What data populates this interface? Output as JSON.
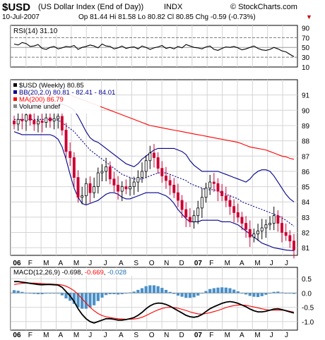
{
  "header": {
    "symbol": "$USD",
    "name": "(US Dollar Index (End of Day))",
    "exchange": "INDX",
    "copyright": "© StockCharts.com",
    "date": "10-Jul-2007",
    "quote": "Op 81.44 Hi 81.58 Lo 80.82 Cl 80.85 Chg -0.59 (-0.73%)",
    "down_arrow": "▼",
    "down_color": "#cc0000"
  },
  "chart_data": [
    {
      "type": "line",
      "panel": "RSI",
      "label": "RSI(14) 31.10",
      "ylim": [
        10,
        95
      ],
      "y_ticks": [
        "90",
        "70",
        "50",
        "30",
        "10"
      ],
      "reference_lines": [
        30,
        50,
        70
      ],
      "series": [
        {
          "name": "RSI(14)",
          "color": "#000000",
          "values": [
            57,
            55,
            60,
            58,
            52,
            53,
            56,
            48,
            46,
            50,
            52,
            47,
            49,
            52,
            51,
            54,
            46,
            50,
            52,
            55,
            53,
            49,
            57,
            53,
            52,
            47,
            49,
            53,
            48,
            50,
            51,
            47,
            53,
            50,
            46,
            49,
            51,
            54,
            48,
            50,
            47,
            52,
            49,
            56,
            53,
            50,
            49,
            47,
            51,
            53,
            46,
            44,
            48,
            51,
            50,
            52,
            49,
            45,
            47,
            50,
            53,
            48,
            45,
            44,
            46,
            50,
            47,
            43,
            41,
            36,
            31
          ]
        }
      ]
    },
    {
      "type": "candlestick",
      "panel": "Price",
      "legend": [
        {
          "label": "$USD (Weekly) 80.85",
          "color": "#000000"
        },
        {
          "label": "BB(20,2.0) 80.81 - 82.41 - 84.01",
          "color": "#00008b"
        },
        {
          "label": "MA(200) 86.79",
          "color": "#ff0000"
        },
        {
          "label": "Volume undef",
          "color": "#888888"
        }
      ],
      "ylim": [
        80.5,
        92
      ],
      "y_ticks": [
        "91",
        "90",
        "89",
        "88",
        "87",
        "86",
        "85",
        "84",
        "83",
        "82",
        "81"
      ],
      "x_labels": [
        "06",
        "F",
        "M",
        "A",
        "M",
        "J",
        "J",
        "A",
        "S",
        "O",
        "N",
        "D",
        "07",
        "F",
        "M",
        "A",
        "M",
        "J",
        "J"
      ],
      "up_color": "#000000",
      "down_color": "#cc0033",
      "closes": [
        89.1,
        89.4,
        89.3,
        89.7,
        89.35,
        89.1,
        89.3,
        89.2,
        89.5,
        89.3,
        89.45,
        89.6,
        88.7,
        87.3,
        86.9,
        85.6,
        84.3,
        84.4,
        85.2,
        84.6,
        85.0,
        85.9,
        86.0,
        86.3,
        85.5,
        85.1,
        84.7,
        85.0,
        84.85,
        85.0,
        85.3,
        85.6,
        86.0,
        86.7,
        87.2,
        86.9,
        86.2,
        85.7,
        85.4,
        85.1,
        84.6,
        84.1,
        83.5,
        83.0,
        82.7,
        83.1,
        83.6,
        84.3,
        84.9,
        85.3,
        85.2,
        84.7,
        84.4,
        84.1,
        83.7,
        83.3,
        83.0,
        82.6,
        82.2,
        81.7,
        81.9,
        82.1,
        82.3,
        82.5,
        82.6,
        83.1,
        82.6,
        82.0,
        81.8,
        81.44,
        80.85
      ],
      "overlays": [
        {
          "name": "BB upper",
          "color": "#00008b",
          "values": [
            90.0,
            90.2,
            90.3,
            90.4,
            90.4,
            90.4,
            90.4,
            90.4,
            90.4,
            90.4,
            90.4,
            90.4,
            90.4,
            90.3,
            90.2,
            90.0,
            89.6,
            89.1,
            88.6,
            88.2,
            88.0,
            87.9,
            87.7,
            87.5,
            87.3,
            87.1,
            86.9,
            86.7,
            86.5,
            86.4,
            86.3,
            86.5,
            86.8,
            87.0,
            87.2,
            87.4,
            87.5,
            87.5,
            87.5,
            87.5,
            87.5,
            87.4,
            87.3,
            87.1,
            86.7,
            86.4,
            86.2,
            86.0,
            86.0,
            86.0,
            86.0,
            86.0,
            85.9,
            85.8,
            85.7,
            85.6,
            85.5,
            85.4,
            85.3,
            85.5,
            85.8,
            86.0,
            86.1,
            86.1,
            86.0,
            85.7,
            85.3,
            84.9,
            84.5,
            84.2,
            84.0
          ]
        },
        {
          "name": "BB middle",
          "color": "#00008b",
          "dashed": true,
          "values": [
            89.4,
            89.4,
            89.4,
            89.4,
            89.4,
            89.4,
            89.4,
            89.4,
            89.4,
            89.4,
            89.4,
            89.35,
            89.2,
            89.0,
            88.8,
            88.6,
            88.3,
            88.0,
            87.7,
            87.4,
            87.2,
            87.0,
            86.8,
            86.6,
            86.4,
            86.2,
            86.0,
            85.8,
            85.7,
            85.6,
            85.5,
            85.5,
            85.5,
            85.6,
            85.7,
            85.8,
            85.9,
            85.9,
            85.9,
            85.8,
            85.7,
            85.6,
            85.5,
            85.4,
            85.2,
            85.1,
            85.0,
            84.9,
            84.8,
            84.8,
            84.8,
            84.7,
            84.6,
            84.5,
            84.4,
            84.3,
            84.2,
            84.0,
            83.9,
            83.8,
            83.7,
            83.6,
            83.5,
            83.4,
            83.3,
            83.2,
            83.1,
            82.95,
            82.8,
            82.6,
            82.41
          ]
        },
        {
          "name": "BB lower",
          "color": "#00008b",
          "values": [
            88.6,
            88.5,
            88.4,
            88.4,
            88.4,
            88.4,
            88.4,
            88.4,
            88.4,
            88.4,
            88.3,
            88.1,
            87.6,
            86.8,
            85.8,
            84.9,
            84.3,
            83.9,
            83.8,
            83.9,
            84.0,
            84.1,
            84.3,
            84.5,
            84.6,
            84.6,
            84.5,
            84.3,
            84.2,
            84.2,
            84.3,
            84.4,
            84.5,
            84.6,
            84.6,
            84.6,
            84.6,
            84.5,
            84.4,
            84.2,
            83.9,
            83.5,
            83.2,
            82.9,
            82.7,
            82.7,
            82.7,
            82.8,
            82.8,
            82.8,
            82.8,
            82.8,
            82.7,
            82.7,
            82.7,
            82.6,
            82.5,
            82.3,
            82.1,
            81.9,
            81.7,
            81.5,
            81.3,
            81.2,
            81.1,
            81.0,
            80.95,
            80.9,
            80.85,
            80.83,
            80.81
          ]
        },
        {
          "name": "MA(200)",
          "color": "#ff0000",
          "values": [
            91.0,
            91.0,
            91.0,
            91.0,
            91.0,
            91.0,
            91.0,
            91.0,
            91.0,
            91.0,
            91.0,
            91.0,
            91.0,
            91.0,
            91.0,
            90.9,
            90.8,
            90.7,
            90.6,
            90.5,
            90.4,
            90.3,
            90.2,
            90.1,
            90.0,
            89.9,
            89.8,
            89.7,
            89.6,
            89.5,
            89.4,
            89.3,
            89.2,
            89.1,
            89.0,
            88.95,
            88.9,
            88.85,
            88.8,
            88.75,
            88.7,
            88.65,
            88.6,
            88.55,
            88.5,
            88.45,
            88.4,
            88.35,
            88.3,
            88.25,
            88.2,
            88.15,
            88.1,
            88.05,
            88.0,
            87.95,
            87.9,
            87.8,
            87.7,
            87.6,
            87.55,
            87.5,
            87.45,
            87.4,
            87.3,
            87.2,
            87.1,
            87.0,
            86.95,
            86.85,
            86.79
          ]
        }
      ]
    },
    {
      "type": "bar",
      "panel": "MACD",
      "label": "MACD(12,26,9) -0.698, -0.669, -0.028",
      "label_parts": [
        "MACD(12,26,9) -0.698",
        ", ",
        "-0.669",
        ", ",
        "-0.028"
      ],
      "label_colors": [
        "#000000",
        "#000000",
        "#ff0000",
        "#000000",
        "#1e6eb4"
      ],
      "ylim": [
        -1.3,
        0.9
      ],
      "y_ticks": [
        "0.5",
        "0.0",
        "-0.5",
        "-1.0"
      ],
      "series": [
        {
          "name": "MACD",
          "color": "#000000",
          "values": [
            0.4,
            0.4,
            0.38,
            0.36,
            0.34,
            0.32,
            0.3,
            0.29,
            0.3,
            0.3,
            0.29,
            0.28,
            0.2,
            0.05,
            -0.1,
            -0.3,
            -0.55,
            -0.75,
            -0.9,
            -1.0,
            -1.05,
            -1.0,
            -0.95,
            -0.9,
            -0.9,
            -0.92,
            -0.95,
            -0.95,
            -0.93,
            -0.9,
            -0.86,
            -0.78,
            -0.68,
            -0.55,
            -0.45,
            -0.38,
            -0.35,
            -0.36,
            -0.4,
            -0.46,
            -0.54,
            -0.62,
            -0.7,
            -0.78,
            -0.83,
            -0.85,
            -0.82,
            -0.75,
            -0.65,
            -0.55,
            -0.48,
            -0.42,
            -0.36,
            -0.32,
            -0.3,
            -0.32,
            -0.36,
            -0.42,
            -0.48,
            -0.56,
            -0.62,
            -0.66,
            -0.66,
            -0.64,
            -0.6,
            -0.56,
            -0.55,
            -0.58,
            -0.62,
            -0.66,
            -0.7
          ]
        },
        {
          "name": "Signal",
          "color": "#ff0000",
          "values": [
            0.3,
            0.32,
            0.34,
            0.35,
            0.35,
            0.35,
            0.34,
            0.33,
            0.32,
            0.32,
            0.31,
            0.3,
            0.28,
            0.24,
            0.17,
            0.08,
            -0.05,
            -0.2,
            -0.35,
            -0.5,
            -0.62,
            -0.72,
            -0.79,
            -0.83,
            -0.86,
            -0.88,
            -0.9,
            -0.91,
            -0.92,
            -0.92,
            -0.91,
            -0.89,
            -0.85,
            -0.79,
            -0.72,
            -0.65,
            -0.59,
            -0.54,
            -0.51,
            -0.5,
            -0.51,
            -0.53,
            -0.57,
            -0.61,
            -0.66,
            -0.7,
            -0.73,
            -0.74,
            -0.72,
            -0.69,
            -0.65,
            -0.61,
            -0.56,
            -0.51,
            -0.47,
            -0.44,
            -0.42,
            -0.42,
            -0.43,
            -0.46,
            -0.49,
            -0.52,
            -0.55,
            -0.58,
            -0.6,
            -0.6,
            -0.6,
            -0.6,
            -0.61,
            -0.64,
            -0.67
          ]
        },
        {
          "name": "Histogram",
          "color": "#4a90c8",
          "values": [
            0.1,
            0.08,
            0.04,
            0.01,
            -0.01,
            -0.03,
            -0.04,
            -0.04,
            -0.02,
            -0.02,
            -0.02,
            -0.02,
            -0.08,
            -0.19,
            -0.27,
            -0.38,
            -0.5,
            -0.55,
            -0.55,
            -0.5,
            -0.43,
            -0.28,
            -0.16,
            -0.07,
            -0.04,
            -0.04,
            -0.05,
            -0.04,
            -0.01,
            0.02,
            0.05,
            0.11,
            0.17,
            0.24,
            0.27,
            0.27,
            0.24,
            0.18,
            0.11,
            0.04,
            -0.03,
            -0.09,
            -0.13,
            -0.17,
            -0.17,
            -0.15,
            -0.09,
            -0.01,
            0.07,
            0.14,
            0.17,
            0.19,
            0.2,
            0.19,
            0.17,
            0.12,
            0.06,
            0.0,
            -0.05,
            -0.1,
            -0.13,
            -0.14,
            -0.11,
            -0.06,
            0.0,
            0.04,
            0.05,
            0.02,
            -0.01,
            -0.02,
            -0.03
          ]
        }
      ],
      "x_labels": [
        "06",
        "F",
        "M",
        "A",
        "M",
        "J",
        "J",
        "A",
        "S",
        "O",
        "N",
        "D",
        "07",
        "F",
        "M",
        "A",
        "M",
        "J",
        "J"
      ]
    }
  ]
}
